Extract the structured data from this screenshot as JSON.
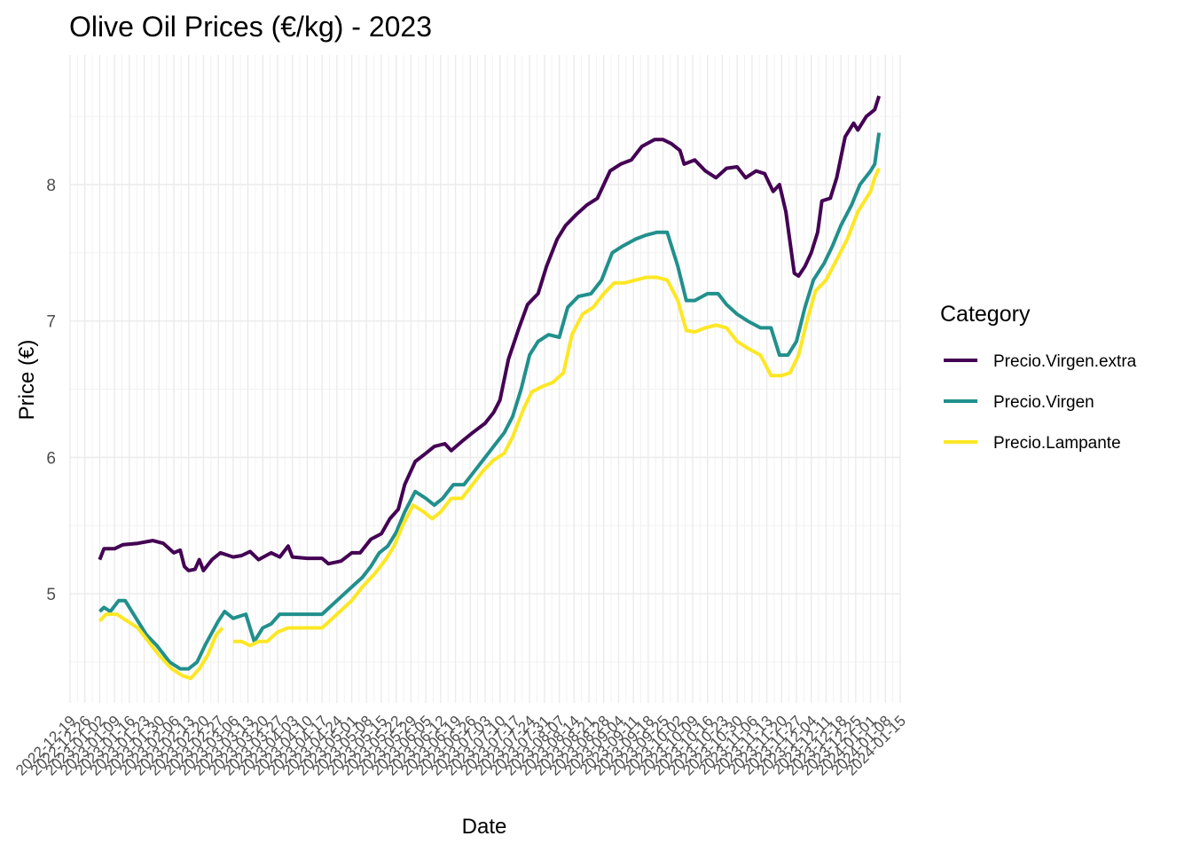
{
  "chart_data": {
    "type": "line",
    "title": "Olive Oil Prices (€/kg) - 2023",
    "xlabel": "Date",
    "ylabel": "Price (€)",
    "legend_title": "Category",
    "legend_position": "right",
    "grid": true,
    "x_range": [
      "2022-12-19",
      "2024-01-15"
    ],
    "y_range": [
      4.2,
      8.95
    ],
    "y_ticks": [
      5,
      6,
      7,
      8
    ],
    "x_ticks": [
      "2022-12-19",
      "2022-12-26",
      "2023-01-02",
      "2023-01-09",
      "2023-01-16",
      "2023-01-23",
      "2023-01-30",
      "2023-02-06",
      "2023-02-13",
      "2023-02-20",
      "2023-02-27",
      "2023-03-06",
      "2023-03-13",
      "2023-03-20",
      "2023-03-27",
      "2023-04-03",
      "2023-04-10",
      "2023-04-17",
      "2023-04-24",
      "2023-05-01",
      "2023-05-08",
      "2023-05-15",
      "2023-05-22",
      "2023-05-29",
      "2023-06-05",
      "2023-06-12",
      "2023-06-19",
      "2023-06-26",
      "2023-07-03",
      "2023-07-10",
      "2023-07-17",
      "2023-07-24",
      "2023-07-31",
      "2023-08-07",
      "2023-08-14",
      "2023-08-21",
      "2023-08-28",
      "2023-09-04",
      "2023-09-11",
      "2023-09-18",
      "2023-09-25",
      "2023-10-02",
      "2023-10-09",
      "2023-10-16",
      "2023-10-23",
      "2023-10-30",
      "2023-11-06",
      "2023-11-13",
      "2023-11-20",
      "2023-11-27",
      "2023-12-04",
      "2023-12-11",
      "2023-12-18",
      "2023-12-25",
      "2024-01-01",
      "2024-01-08",
      "2024-01-15"
    ],
    "series": [
      {
        "name": "Precio.Virgen.extra",
        "color": "#440154",
        "points": [
          [
            "2023-01-02",
            5.25
          ],
          [
            "2023-01-04",
            5.33
          ],
          [
            "2023-01-09",
            5.33
          ],
          [
            "2023-01-13",
            5.36
          ],
          [
            "2023-01-20",
            5.37
          ],
          [
            "2023-01-27",
            5.39
          ],
          [
            "2023-02-01",
            5.37
          ],
          [
            "2023-02-06",
            5.3
          ],
          [
            "2023-02-09",
            5.32
          ],
          [
            "2023-02-11",
            5.2
          ],
          [
            "2023-02-13",
            5.17
          ],
          [
            "2023-02-16",
            5.18
          ],
          [
            "2023-02-18",
            5.25
          ],
          [
            "2023-02-20",
            5.17
          ],
          [
            "2023-02-24",
            5.25
          ],
          [
            "2023-02-28",
            5.3
          ],
          [
            "2023-03-06",
            5.27
          ],
          [
            "2023-03-10",
            5.28
          ],
          [
            "2023-03-14",
            5.31
          ],
          [
            "2023-03-18",
            5.25
          ],
          [
            "2023-03-24",
            5.3
          ],
          [
            "2023-03-28",
            5.27
          ],
          [
            "2023-04-01",
            5.35
          ],
          [
            "2023-04-03",
            5.27
          ],
          [
            "2023-04-10",
            5.26
          ],
          [
            "2023-04-17",
            5.26
          ],
          [
            "2023-04-20",
            5.22
          ],
          [
            "2023-04-26",
            5.24
          ],
          [
            "2023-05-01",
            5.3
          ],
          [
            "2023-05-05",
            5.3
          ],
          [
            "2023-05-10",
            5.4
          ],
          [
            "2023-05-15",
            5.44
          ],
          [
            "2023-05-19",
            5.55
          ],
          [
            "2023-05-23",
            5.62
          ],
          [
            "2023-05-26",
            5.8
          ],
          [
            "2023-05-31",
            5.97
          ],
          [
            "2023-06-05",
            6.03
          ],
          [
            "2023-06-09",
            6.08
          ],
          [
            "2023-06-14",
            6.1
          ],
          [
            "2023-06-17",
            6.05
          ],
          [
            "2023-06-23",
            6.13
          ],
          [
            "2023-06-27",
            6.18
          ],
          [
            "2023-07-03",
            6.25
          ],
          [
            "2023-07-07",
            6.33
          ],
          [
            "2023-07-10",
            6.42
          ],
          [
            "2023-07-14",
            6.72
          ],
          [
            "2023-07-19",
            6.95
          ],
          [
            "2023-07-23",
            7.12
          ],
          [
            "2023-07-28",
            7.2
          ],
          [
            "2023-08-01",
            7.4
          ],
          [
            "2023-08-06",
            7.6
          ],
          [
            "2023-08-10",
            7.7
          ],
          [
            "2023-08-15",
            7.78
          ],
          [
            "2023-08-20",
            7.85
          ],
          [
            "2023-08-25",
            7.9
          ],
          [
            "2023-08-31",
            8.1
          ],
          [
            "2023-09-05",
            8.15
          ],
          [
            "2023-09-10",
            8.18
          ],
          [
            "2023-09-15",
            8.28
          ],
          [
            "2023-09-21",
            8.33
          ],
          [
            "2023-09-25",
            8.33
          ],
          [
            "2023-09-29",
            8.3
          ],
          [
            "2023-10-03",
            8.25
          ],
          [
            "2023-10-05",
            8.15
          ],
          [
            "2023-10-10",
            8.18
          ],
          [
            "2023-10-15",
            8.1
          ],
          [
            "2023-10-20",
            8.05
          ],
          [
            "2023-10-25",
            8.12
          ],
          [
            "2023-10-30",
            8.13
          ],
          [
            "2023-11-03",
            8.05
          ],
          [
            "2023-11-08",
            8.1
          ],
          [
            "2023-11-12",
            8.08
          ],
          [
            "2023-11-16",
            7.95
          ],
          [
            "2023-11-19",
            8.0
          ],
          [
            "2023-11-22",
            7.8
          ],
          [
            "2023-11-26",
            7.35
          ],
          [
            "2023-11-28",
            7.33
          ],
          [
            "2023-12-01",
            7.4
          ],
          [
            "2023-12-04",
            7.5
          ],
          [
            "2023-12-07",
            7.65
          ],
          [
            "2023-12-09",
            7.88
          ],
          [
            "2023-12-13",
            7.9
          ],
          [
            "2023-12-16",
            8.05
          ],
          [
            "2023-12-20",
            8.35
          ],
          [
            "2023-12-24",
            8.45
          ],
          [
            "2023-12-26",
            8.4
          ],
          [
            "2023-12-30",
            8.5
          ],
          [
            "2024-01-03",
            8.55
          ],
          [
            "2024-01-05",
            8.65
          ]
        ]
      },
      {
        "name": "Precio.Virgen",
        "color": "#21908C",
        "points": [
          [
            "2023-01-02",
            4.87
          ],
          [
            "2023-01-04",
            4.9
          ],
          [
            "2023-01-07",
            4.87
          ],
          [
            "2023-01-11",
            4.95
          ],
          [
            "2023-01-14",
            4.95
          ],
          [
            "2023-01-18",
            4.85
          ],
          [
            "2023-01-24",
            4.7
          ],
          [
            "2023-01-29",
            4.62
          ],
          [
            "2023-02-04",
            4.5
          ],
          [
            "2023-02-09",
            4.45
          ],
          [
            "2023-02-13",
            4.45
          ],
          [
            "2023-02-17",
            4.5
          ],
          [
            "2023-02-21",
            4.63
          ],
          [
            "2023-02-27",
            4.8
          ],
          [
            "2023-03-02",
            4.87
          ],
          [
            "2023-03-06",
            4.82
          ],
          [
            "2023-03-12",
            4.85
          ],
          [
            "2023-03-16",
            4.65
          ],
          [
            "2023-03-20",
            4.75
          ],
          [
            "2023-03-24",
            4.78
          ],
          [
            "2023-03-28",
            4.85
          ],
          [
            "2023-04-01",
            4.85
          ],
          [
            "2023-04-06",
            4.85
          ],
          [
            "2023-04-10",
            4.85
          ],
          [
            "2023-04-17",
            4.85
          ],
          [
            "2023-04-24",
            4.95
          ],
          [
            "2023-05-01",
            5.05
          ],
          [
            "2023-05-06",
            5.12
          ],
          [
            "2023-05-10",
            5.2
          ],
          [
            "2023-05-14",
            5.3
          ],
          [
            "2023-05-18",
            5.35
          ],
          [
            "2023-05-22",
            5.45
          ],
          [
            "2023-05-26",
            5.6
          ],
          [
            "2023-05-31",
            5.75
          ],
          [
            "2023-06-05",
            5.7
          ],
          [
            "2023-06-09",
            5.65
          ],
          [
            "2023-06-13",
            5.7
          ],
          [
            "2023-06-18",
            5.8
          ],
          [
            "2023-06-23",
            5.8
          ],
          [
            "2023-06-28",
            5.9
          ],
          [
            "2023-07-03",
            6.0
          ],
          [
            "2023-07-08",
            6.1
          ],
          [
            "2023-07-12",
            6.18
          ],
          [
            "2023-07-16",
            6.3
          ],
          [
            "2023-07-20",
            6.5
          ],
          [
            "2023-07-24",
            6.75
          ],
          [
            "2023-07-28",
            6.85
          ],
          [
            "2023-08-02",
            6.9
          ],
          [
            "2023-08-07",
            6.88
          ],
          [
            "2023-08-11",
            7.1
          ],
          [
            "2023-08-16",
            7.18
          ],
          [
            "2023-08-22",
            7.2
          ],
          [
            "2023-08-27",
            7.3
          ],
          [
            "2023-09-01",
            7.5
          ],
          [
            "2023-09-06",
            7.55
          ],
          [
            "2023-09-12",
            7.6
          ],
          [
            "2023-09-17",
            7.63
          ],
          [
            "2023-09-22",
            7.65
          ],
          [
            "2023-09-27",
            7.65
          ],
          [
            "2023-10-02",
            7.4
          ],
          [
            "2023-10-06",
            7.15
          ],
          [
            "2023-10-10",
            7.15
          ],
          [
            "2023-10-16",
            7.2
          ],
          [
            "2023-10-21",
            7.2
          ],
          [
            "2023-10-25",
            7.12
          ],
          [
            "2023-10-30",
            7.05
          ],
          [
            "2023-11-04",
            7.0
          ],
          [
            "2023-11-10",
            6.95
          ],
          [
            "2023-11-15",
            6.95
          ],
          [
            "2023-11-19",
            6.75
          ],
          [
            "2023-11-23",
            6.75
          ],
          [
            "2023-11-27",
            6.85
          ],
          [
            "2023-12-01",
            7.1
          ],
          [
            "2023-12-05",
            7.3
          ],
          [
            "2023-12-10",
            7.42
          ],
          [
            "2023-12-14",
            7.55
          ],
          [
            "2023-12-18",
            7.7
          ],
          [
            "2023-12-23",
            7.85
          ],
          [
            "2023-12-27",
            8.0
          ],
          [
            "2024-01-01",
            8.1
          ],
          [
            "2024-01-03",
            8.15
          ],
          [
            "2024-01-05",
            8.38
          ]
        ]
      },
      {
        "name": "Precio.Lampante",
        "color": "#FDE725",
        "points": [
          [
            "2023-01-02",
            4.8
          ],
          [
            "2023-01-05",
            4.85
          ],
          [
            "2023-01-10",
            4.85
          ],
          [
            "2023-01-15",
            4.8
          ],
          [
            "2023-01-20",
            4.75
          ],
          [
            "2023-01-25",
            4.65
          ],
          [
            "2023-01-30",
            4.55
          ],
          [
            "2023-02-05",
            4.45
          ],
          [
            "2023-02-10",
            4.4
          ],
          [
            "2023-02-14",
            4.38
          ],
          [
            "2023-02-18",
            4.45
          ],
          [
            "2023-02-22",
            4.55
          ],
          [
            "2023-02-26",
            4.7
          ],
          [
            "2023-03-01",
            4.75
          ],
          [
            "2023-03-04",
            null
          ],
          [
            "2023-03-06",
            4.65
          ],
          [
            "2023-03-10",
            4.65
          ],
          [
            "2023-03-14",
            4.62
          ],
          [
            "2023-03-18",
            4.65
          ],
          [
            "2023-03-22",
            4.65
          ],
          [
            "2023-03-27",
            4.72
          ],
          [
            "2023-04-01",
            4.75
          ],
          [
            "2023-04-06",
            4.75
          ],
          [
            "2023-04-10",
            4.75
          ],
          [
            "2023-04-17",
            4.75
          ],
          [
            "2023-04-24",
            4.85
          ],
          [
            "2023-05-01",
            4.95
          ],
          [
            "2023-05-06",
            5.05
          ],
          [
            "2023-05-12",
            5.15
          ],
          [
            "2023-05-17",
            5.25
          ],
          [
            "2023-05-21",
            5.35
          ],
          [
            "2023-05-25",
            5.5
          ],
          [
            "2023-05-30",
            5.65
          ],
          [
            "2023-06-04",
            5.6
          ],
          [
            "2023-06-08",
            5.55
          ],
          [
            "2023-06-12",
            5.6
          ],
          [
            "2023-06-17",
            5.7
          ],
          [
            "2023-06-22",
            5.7
          ],
          [
            "2023-06-27",
            5.8
          ],
          [
            "2023-07-02",
            5.9
          ],
          [
            "2023-07-07",
            5.98
          ],
          [
            "2023-07-12",
            6.03
          ],
          [
            "2023-07-16",
            6.15
          ],
          [
            "2023-07-21",
            6.35
          ],
          [
            "2023-07-25",
            6.48
          ],
          [
            "2023-07-30",
            6.52
          ],
          [
            "2023-08-04",
            6.55
          ],
          [
            "2023-08-09",
            6.62
          ],
          [
            "2023-08-13",
            6.9
          ],
          [
            "2023-08-18",
            7.05
          ],
          [
            "2023-08-23",
            7.1
          ],
          [
            "2023-08-28",
            7.2
          ],
          [
            "2023-09-02",
            7.28
          ],
          [
            "2023-09-07",
            7.28
          ],
          [
            "2023-09-12",
            7.3
          ],
          [
            "2023-09-17",
            7.32
          ],
          [
            "2023-09-22",
            7.32
          ],
          [
            "2023-09-27",
            7.3
          ],
          [
            "2023-10-02",
            7.15
          ],
          [
            "2023-10-06",
            6.93
          ],
          [
            "2023-10-10",
            6.92
          ],
          [
            "2023-10-15",
            6.95
          ],
          [
            "2023-10-20",
            6.97
          ],
          [
            "2023-10-25",
            6.95
          ],
          [
            "2023-10-30",
            6.85
          ],
          [
            "2023-11-04",
            6.8
          ],
          [
            "2023-11-10",
            6.75
          ],
          [
            "2023-11-15",
            6.6
          ],
          [
            "2023-11-20",
            6.6
          ],
          [
            "2023-11-24",
            6.62
          ],
          [
            "2023-11-28",
            6.75
          ],
          [
            "2023-12-02",
            7.0
          ],
          [
            "2023-12-06",
            7.22
          ],
          [
            "2023-12-11",
            7.3
          ],
          [
            "2023-12-16",
            7.45
          ],
          [
            "2023-12-21",
            7.6
          ],
          [
            "2023-12-26",
            7.8
          ],
          [
            "2024-01-01",
            7.95
          ],
          [
            "2024-01-03",
            8.05
          ],
          [
            "2024-01-05",
            8.12
          ]
        ]
      }
    ]
  }
}
